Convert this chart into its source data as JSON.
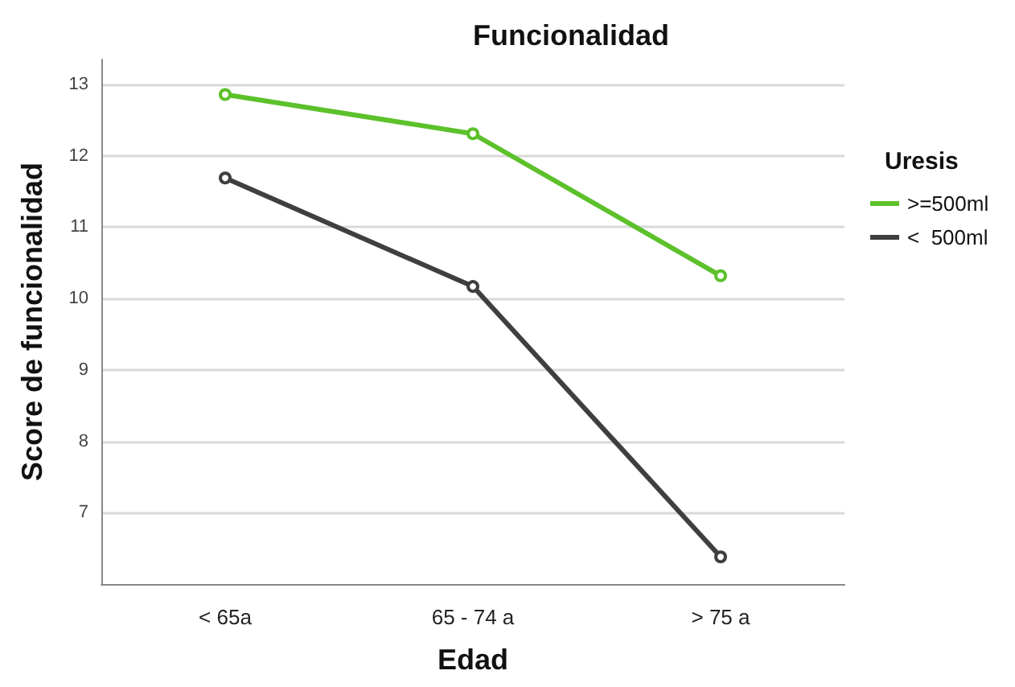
{
  "chart_data": {
    "type": "line",
    "title": "Funcionalidad",
    "xlabel": "Edad",
    "ylabel": "Score de funcionalidad",
    "legend_title": "Uresis",
    "categories": [
      "< 65a",
      "65 - 74 a",
      "> 75 a"
    ],
    "series": [
      {
        "name": ">=500ml",
        "color": "#5cc12b",
        "values": [
          12.86,
          12.31,
          10.32
        ]
      },
      {
        "name": "<  500ml",
        "color": "#3f3f3f",
        "values": [
          11.69,
          10.17,
          6.38
        ]
      }
    ],
    "ylim": [
      6,
      13.35
    ],
    "yticks": [
      7,
      8,
      9,
      10,
      11,
      12,
      13
    ],
    "grid": "y",
    "legend": "right",
    "marker": "circle",
    "line_style": "solid"
  }
}
